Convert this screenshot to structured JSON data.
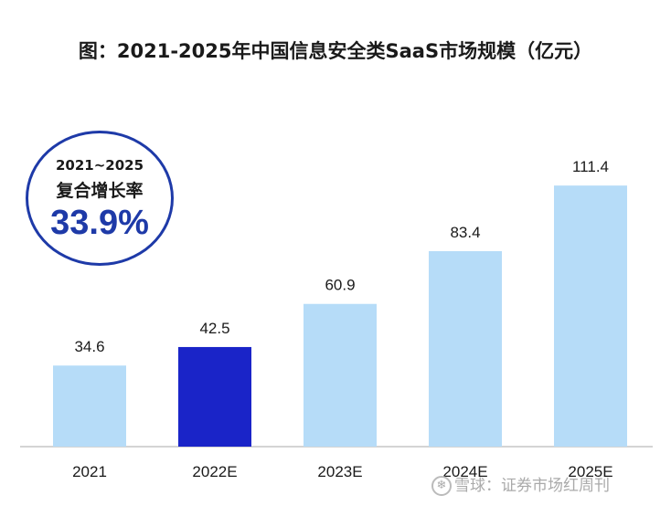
{
  "chart_data": {
    "type": "bar",
    "title": "图：2021-2025年中国信息安全类SaaS市场规模（亿元）",
    "categories": [
      "2021",
      "2022E",
      "2023E",
      "2024E",
      "2025E"
    ],
    "values": [
      34.6,
      42.5,
      60.9,
      83.4,
      111.4
    ],
    "value_labels": [
      "34.6",
      "42.5",
      "60.9",
      "83.4",
      "111.4"
    ],
    "highlight_index": 1,
    "xlabel": "",
    "ylabel": "",
    "ylim": [
      0,
      120
    ],
    "grid": false,
    "legend": "none",
    "colors": {
      "bar": "#b6dcf8",
      "highlight": "#1a24c8",
      "axis": "#d4d4d4"
    }
  },
  "annotation": {
    "range": "2021~2025",
    "label": "复合增长率",
    "value": "33.9%",
    "color": "#1e3aa8"
  },
  "watermark": {
    "text": "雪球：证券市场红周刊",
    "icon": "snowball-logo-icon"
  }
}
